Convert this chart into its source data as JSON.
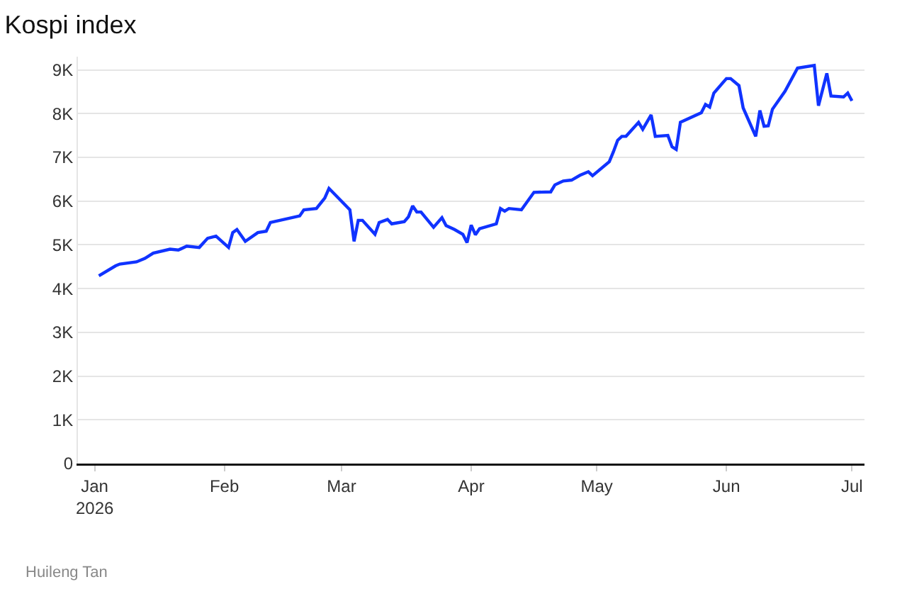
{
  "chart_data": {
    "type": "line",
    "title": "Kospi index",
    "x": [
      "2026-01-02",
      "2026-01-06",
      "2026-01-07",
      "2026-01-11",
      "2026-01-13",
      "2026-01-15",
      "2026-01-19",
      "2026-01-21",
      "2026-01-23",
      "2026-01-26",
      "2026-01-28",
      "2026-01-30",
      "2026-02-02",
      "2026-02-03",
      "2026-02-04",
      "2026-02-06",
      "2026-02-09",
      "2026-02-11",
      "2026-02-12",
      "2026-02-19",
      "2026-02-20",
      "2026-02-23",
      "2026-02-25",
      "2026-02-26",
      "2026-03-03",
      "2026-03-04",
      "2026-03-05",
      "2026-03-06",
      "2026-03-09",
      "2026-03-10",
      "2026-03-12",
      "2026-03-13",
      "2026-03-16",
      "2026-03-17",
      "2026-03-18",
      "2026-03-19",
      "2026-03-20",
      "2026-03-23",
      "2026-03-25",
      "2026-03-26",
      "2026-03-28",
      "2026-03-30",
      "2026-03-31",
      "2026-04-01",
      "2026-04-02",
      "2026-04-03",
      "2026-04-07",
      "2026-04-08",
      "2026-04-09",
      "2026-04-10",
      "2026-04-13",
      "2026-04-16",
      "2026-04-20",
      "2026-04-21",
      "2026-04-23",
      "2026-04-25",
      "2026-04-27",
      "2026-04-29",
      "2026-04-30",
      "2026-05-04",
      "2026-05-05",
      "2026-05-06",
      "2026-05-07",
      "2026-05-08",
      "2026-05-11",
      "2026-05-12",
      "2026-05-14",
      "2026-05-15",
      "2026-05-18",
      "2026-05-19",
      "2026-05-20",
      "2026-05-21",
      "2026-05-26",
      "2026-05-27",
      "2026-05-28",
      "2026-05-29",
      "2026-06-01",
      "2026-06-02",
      "2026-06-04",
      "2026-06-05",
      "2026-06-08",
      "2026-06-09",
      "2026-06-10",
      "2026-06-11",
      "2026-06-12",
      "2026-06-15",
      "2026-06-18",
      "2026-06-22",
      "2026-06-23",
      "2026-06-25",
      "2026-06-26",
      "2026-06-29",
      "2026-06-30",
      "2026-07-01"
    ],
    "series": [
      {
        "color": "#1033ff",
        "values": [
          4290,
          4520,
          4560,
          4610,
          4690,
          4810,
          4900,
          4880,
          4970,
          4940,
          5150,
          5200,
          4940,
          5280,
          5350,
          5080,
          5280,
          5310,
          5510,
          5660,
          5800,
          5830,
          6070,
          6290,
          5800,
          5080,
          5560,
          5560,
          5240,
          5510,
          5580,
          5480,
          5530,
          5640,
          5890,
          5750,
          5750,
          5400,
          5620,
          5440,
          5350,
          5240,
          5050,
          5450,
          5230,
          5370,
          5480,
          5830,
          5770,
          5830,
          5800,
          6200,
          6210,
          6370,
          6460,
          6480,
          6590,
          6670,
          6580,
          6900,
          7130,
          7390,
          7480,
          7480,
          7800,
          7640,
          7970,
          7480,
          7500,
          7240,
          7180,
          7800,
          8020,
          8210,
          8150,
          8470,
          8800,
          8800,
          8640,
          8130,
          7480,
          8070,
          7710,
          7720,
          8100,
          8510,
          9040,
          9100,
          8180,
          8920,
          8400,
          8380,
          8470,
          8290
        ]
      }
    ],
    "xlim": [
      "2025-12-28",
      "2026-07-04"
    ],
    "xticks": [
      {
        "value": "2026-01-01",
        "label": "Jan\n2026"
      },
      {
        "value": "2026-02-01",
        "label": "Feb"
      },
      {
        "value": "2026-03-01",
        "label": "Mar"
      },
      {
        "value": "2026-04-01",
        "label": "Apr"
      },
      {
        "value": "2026-05-01",
        "label": "May"
      },
      {
        "value": "2026-06-01",
        "label": "Jun"
      },
      {
        "value": "2026-07-01",
        "label": "Jul"
      }
    ],
    "ylim": [
      0,
      9300
    ],
    "yticks": [
      0,
      {
        "value": 1000,
        "label": "1K"
      },
      {
        "value": 2000,
        "label": "2K"
      },
      {
        "value": 3000,
        "label": "3K"
      },
      {
        "value": 4000,
        "label": "4K"
      },
      {
        "value": 5000,
        "label": "5K"
      },
      {
        "value": 6000,
        "label": "6K"
      },
      {
        "value": 7000,
        "label": "7K"
      },
      {
        "value": 8000,
        "label": "8K"
      },
      {
        "value": 9000,
        "label": "9K"
      }
    ],
    "grid": "y",
    "annotations": [
      "Huileng Tan"
    ]
  }
}
